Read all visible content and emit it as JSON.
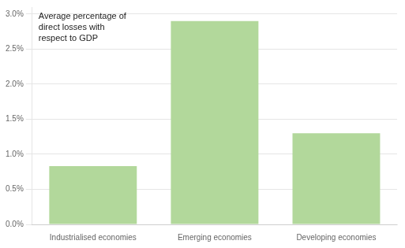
{
  "chart_data": {
    "type": "bar",
    "categories": [
      "Industrialised economies",
      "Emerging economies",
      "Developing economies"
    ],
    "values": [
      0.0083,
      0.029,
      0.013
    ],
    "color": "#b2d89b",
    "ylim": [
      0,
      0.031
    ],
    "yticks": [
      {
        "value": 0.0,
        "label": "0.0%"
      },
      {
        "value": 0.005,
        "label": "0.5%"
      },
      {
        "value": 0.01,
        "label": "1.0%"
      },
      {
        "value": 0.015,
        "label": "1.5%"
      },
      {
        "value": 0.02,
        "label": "2.0%"
      },
      {
        "value": 0.025,
        "label": "2.5%"
      },
      {
        "value": 0.03,
        "label": "3.0%"
      }
    ],
    "grid": true,
    "annotation": "Average percentage of\ndirect losses with\nrespect to GDP"
  }
}
